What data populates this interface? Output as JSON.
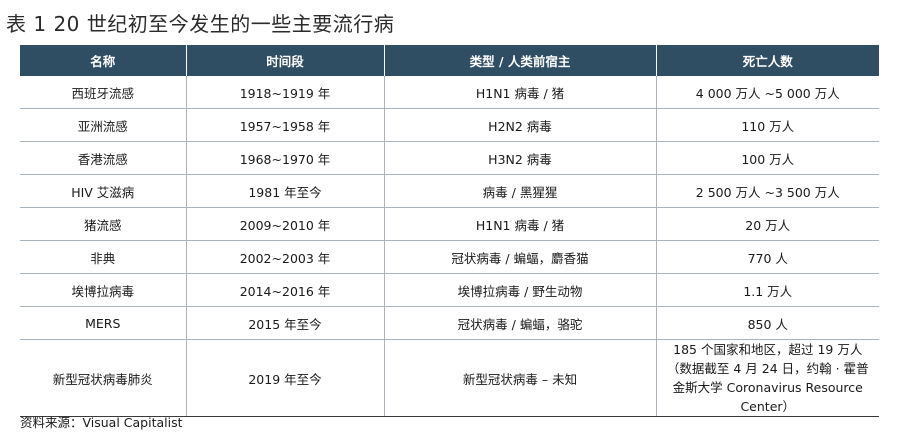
{
  "title": "表 1  20 世纪初至今发生的一些主要流行病",
  "table": {
    "headers": [
      "名称",
      "时间段",
      "类型 / 人类前宿主",
      "死亡人数"
    ],
    "rows": [
      [
        "西班牙流感",
        "1918~1919 年",
        "H1N1 病毒 / 猪",
        "4 000 万人 ~5 000 万人"
      ],
      [
        "亚洲流感",
        "1957~1958 年",
        "H2N2 病毒",
        "110 万人"
      ],
      [
        "香港流感",
        "1968~1970 年",
        "H3N2 病毒",
        "100 万人"
      ],
      [
        "HIV 艾滋病",
        "1981 年至今",
        "病毒 / 黑猩猩",
        "2 500 万人 ~3 500 万人"
      ],
      [
        "猪流感",
        "2009~2010 年",
        "H1N1 病毒 / 猪",
        "20 万人"
      ],
      [
        "非典",
        "2002~2003 年",
        "冠状病毒 / 蝙蝠，麝香猫",
        "770 人"
      ],
      [
        "埃博拉病毒",
        "2014~2016 年",
        "埃博拉病毒 / 野生动物",
        "1.1 万人"
      ],
      [
        "MERS",
        "2015 年至今",
        "冠状病毒 / 蝙蝠，骆驼",
        "850 人"
      ],
      [
        "新型冠状病毒肺炎",
        "2019 年至今",
        "新型冠状病毒 – 未知",
        "185 个国家和地区，超过 19 万人（数据截至 4 月 24 日，约翰 · 霍普金斯大学 Coronavirus Resource Center）"
      ]
    ]
  },
  "source": "资料来源：Visual  Capitalist"
}
